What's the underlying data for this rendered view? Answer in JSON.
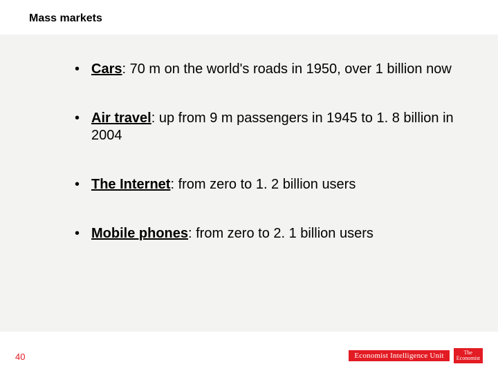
{
  "slide": {
    "title": "Mass markets",
    "page_number": "40",
    "background_color": "#ffffff",
    "content_bg": "#f3f3f1",
    "accent_color": "#e31b23",
    "title_fontsize": 16,
    "body_fontsize": 20,
    "bullets": [
      {
        "label": "Cars",
        "rest": ": 70 m on the world's roads in 1950, over 1 billion now"
      },
      {
        "label": "Air travel",
        "rest": ": up from 9 m passengers in 1945 to 1. 8 billion in 2004"
      },
      {
        "label": "The Internet",
        "rest": ": from zero to 1. 2 billion users"
      },
      {
        "label": "Mobile phones",
        "rest": ": from zero to 2. 1 billion users"
      }
    ],
    "footer": {
      "eiu_text": "Economist Intelligence Unit",
      "economist_line1": "The",
      "economist_line2": "Economist"
    }
  }
}
